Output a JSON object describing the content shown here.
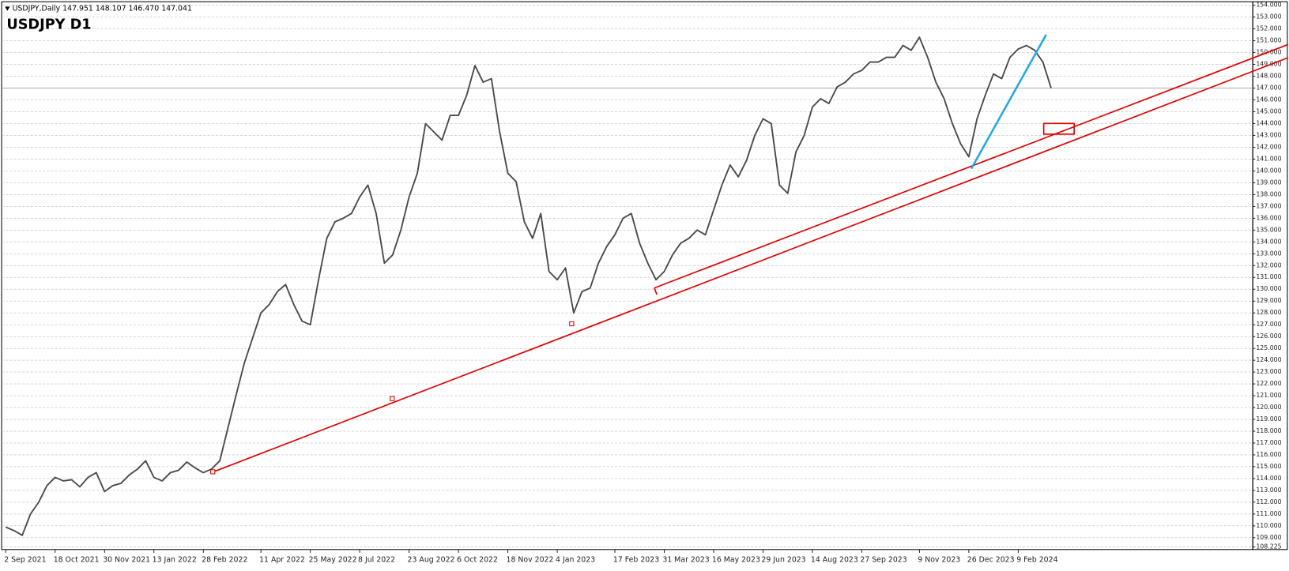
{
  "header": {
    "info": "USDJPY,Daily  147.951 148.107 146.470 147.041",
    "label": "USDJPY D1"
  },
  "chart_data": {
    "type": "line",
    "title": "USDJPY D1",
    "grid": true,
    "categories": [
      "2 Sep 2021",
      null,
      null,
      null,
      null,
      null,
      "18 Oct 2021",
      null,
      null,
      null,
      null,
      null,
      "30 Nov 2021",
      null,
      null,
      null,
      null,
      null,
      "13 Jan 2022",
      null,
      null,
      null,
      null,
      null,
      "28 Feb 2022",
      null,
      null,
      null,
      null,
      null,
      null,
      "11 Apr 2022",
      null,
      null,
      null,
      null,
      null,
      "25 May 2022",
      null,
      null,
      null,
      null,
      null,
      "8 Jul 2022",
      null,
      null,
      null,
      null,
      null,
      "23 Aug 2022",
      null,
      null,
      null,
      null,
      null,
      "6 Oct 2022",
      null,
      null,
      null,
      null,
      null,
      "18 Nov 2022",
      null,
      null,
      null,
      null,
      null,
      "4 Jan 2023",
      null,
      null,
      null,
      null,
      null,
      null,
      "17 Feb 2023",
      null,
      null,
      null,
      null,
      null,
      "31 Mar 2023",
      null,
      null,
      null,
      null,
      null,
      "16 May 2023",
      null,
      null,
      null,
      null,
      null,
      "29 Jun 2023",
      null,
      null,
      null,
      null,
      null,
      "14 Aug 2023",
      null,
      null,
      null,
      null,
      null,
      "27 Sep 2023",
      null,
      null,
      null,
      null,
      null,
      null,
      "9 Nov 2023",
      null,
      null,
      null,
      null,
      null,
      "26 Dec 2023",
      null,
      null,
      null,
      null,
      null,
      "9 Feb 2024",
      null,
      null,
      null,
      null
    ],
    "series": [
      {
        "name": "USDJPY",
        "color": "#4a4a4a",
        "values": [
          109.9,
          109.6,
          109.2,
          111.0,
          112.0,
          113.4,
          114.1,
          113.8,
          113.9,
          113.3,
          114.1,
          114.5,
          112.9,
          113.4,
          113.6,
          114.3,
          114.8,
          115.5,
          114.1,
          113.8,
          114.5,
          114.7,
          115.4,
          114.9,
          114.5,
          114.8,
          115.5,
          118.3,
          121.1,
          123.8,
          125.9,
          128.0,
          128.7,
          129.8,
          130.4,
          128.7,
          127.3,
          127.0,
          130.8,
          134.3,
          135.7,
          136.0,
          136.4,
          137.8,
          138.8,
          136.4,
          132.2,
          132.9,
          135.0,
          137.8,
          139.8,
          144.0,
          143.3,
          142.6,
          144.7,
          144.7,
          146.4,
          148.9,
          147.5,
          147.8,
          143.3,
          139.8,
          139.1,
          135.7,
          134.3,
          136.4,
          131.5,
          130.8,
          131.8,
          128.0,
          129.8,
          130.1,
          132.2,
          133.6,
          134.6,
          136.0,
          136.4,
          133.9,
          132.2,
          130.8,
          131.5,
          132.9,
          133.9,
          134.3,
          135.0,
          134.6,
          136.7,
          138.8,
          140.5,
          139.5,
          140.9,
          143.0,
          144.4,
          144.0,
          138.8,
          138.1,
          141.6,
          143.0,
          145.4,
          146.1,
          145.7,
          147.1,
          147.5,
          148.2,
          148.5,
          149.2,
          149.2,
          149.6,
          149.6,
          150.6,
          150.2,
          151.3,
          149.6,
          147.5,
          146.1,
          144.0,
          142.3,
          141.2,
          144.4,
          146.4,
          148.2,
          147.8,
          149.6,
          150.3,
          150.6,
          150.2,
          149.2,
          147.0
        ]
      }
    ],
    "ylim": [
      108.0,
      154.3
    ],
    "yticks": [
      {
        "value": 108.225,
        "label": "108.225"
      },
      {
        "value": 109,
        "label": "109.000"
      },
      {
        "value": 110,
        "label": "110.000"
      },
      {
        "value": 111,
        "label": "111.000"
      },
      {
        "value": 112,
        "label": "112.000"
      },
      {
        "value": 113,
        "label": "113.000"
      },
      {
        "value": 114,
        "label": "114.000"
      },
      {
        "value": 115,
        "label": "115.000"
      },
      {
        "value": 116,
        "label": "116.000"
      },
      {
        "value": 117,
        "label": "117.000"
      },
      {
        "value": 118,
        "label": "118.000"
      },
      {
        "value": 119,
        "label": "119.000"
      },
      {
        "value": 120,
        "label": "120.000"
      },
      {
        "value": 121,
        "label": "121.000"
      },
      {
        "value": 122,
        "label": "122.000"
      },
      {
        "value": 123,
        "label": "123.000"
      },
      {
        "value": 124,
        "label": "124.000"
      },
      {
        "value": 125,
        "label": "125.000"
      },
      {
        "value": 126,
        "label": "126.000"
      },
      {
        "value": 127,
        "label": "127.000"
      },
      {
        "value": 128,
        "label": "128.000"
      },
      {
        "value": 129,
        "label": "129.000"
      },
      {
        "value": 130,
        "label": "130.000"
      },
      {
        "value": 131,
        "label": "131.000"
      },
      {
        "value": 132,
        "label": "132.000"
      },
      {
        "value": 133,
        "label": "133.000"
      },
      {
        "value": 134,
        "label": "134.000"
      },
      {
        "value": 135,
        "label": "135.000"
      },
      {
        "value": 136,
        "label": "136.000"
      },
      {
        "value": 137,
        "label": "137.000"
      },
      {
        "value": 138,
        "label": "138.000"
      },
      {
        "value": 139,
        "label": "139.000"
      },
      {
        "value": 140,
        "label": "140.000"
      },
      {
        "value": 141,
        "label": "141.000"
      },
      {
        "value": 142,
        "label": "142.000"
      },
      {
        "value": 143,
        "label": "143.000"
      },
      {
        "value": 144,
        "label": "144.000"
      },
      {
        "value": 145,
        "label": "145.000"
      },
      {
        "value": 146,
        "label": "146.000"
      },
      {
        "value": 147,
        "label": "147.000"
      },
      {
        "value": 148,
        "label": "148.000"
      },
      {
        "value": 149,
        "label": "149.000"
      },
      {
        "value": 150,
        "label": "150.000"
      },
      {
        "value": 151,
        "label": "151.000"
      },
      {
        "value": 152,
        "label": "152.000"
      },
      {
        "value": 153,
        "label": "153.000"
      },
      {
        "value": 154,
        "label": "154.000"
      }
    ]
  }
}
